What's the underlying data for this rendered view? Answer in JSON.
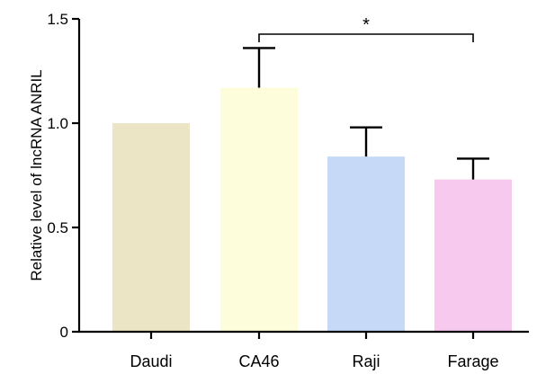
{
  "chart_data": {
    "type": "bar",
    "ylabel": "Relative level of lncRNA ANRIL",
    "xlabel": "",
    "ylim": [
      0,
      1.5
    ],
    "yticks": [
      "0",
      "0.5",
      "1.0",
      "1.5"
    ],
    "categories": [
      "Daudi",
      "CA46",
      "Raji",
      "Farage"
    ],
    "values": [
      1.0,
      1.17,
      0.84,
      0.73
    ],
    "errors": [
      0.0,
      0.19,
      0.14,
      0.1
    ],
    "colors": [
      "#ebe5c6",
      "#fdfddb",
      "#c6daf7",
      "#f7c9ee"
    ],
    "significance": {
      "from": "CA46",
      "to": "Farage",
      "label": "*"
    }
  }
}
